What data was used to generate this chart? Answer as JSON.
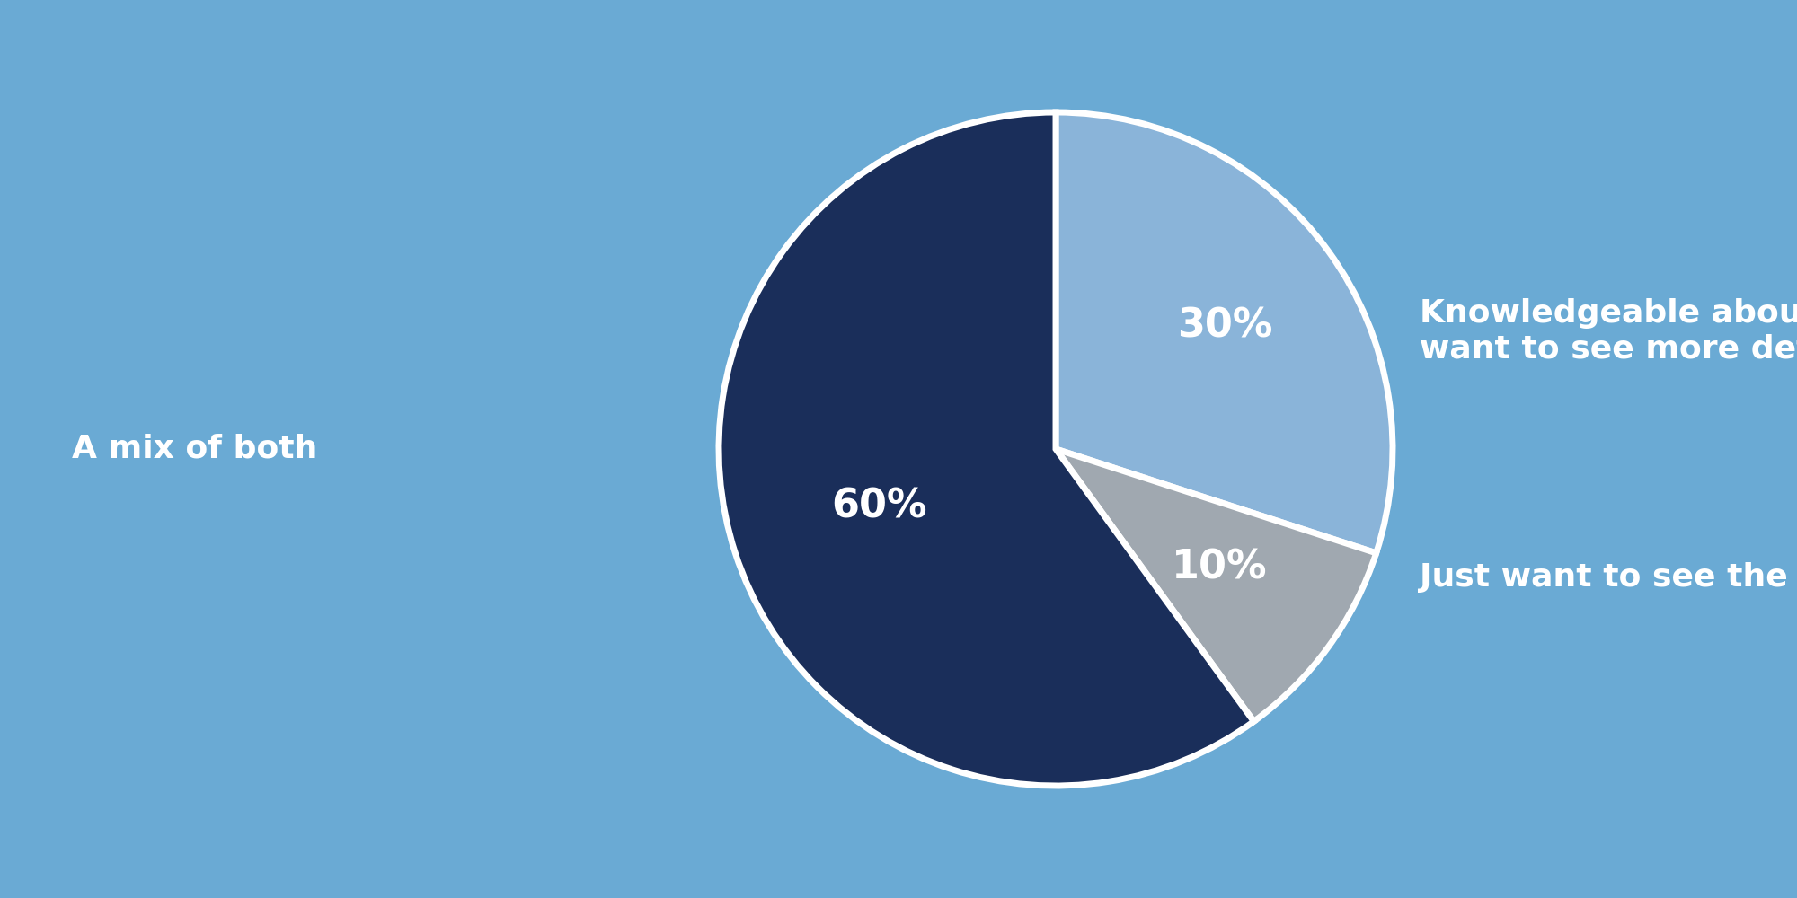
{
  "slices": [
    30,
    10,
    60
  ],
  "labels": [
    "Knowledgeable about UX,\nwant to see more details",
    "Just want to see the results",
    "A mix of both"
  ],
  "pct_labels": [
    "30%",
    "10%",
    "60%"
  ],
  "colors": [
    "#8ab4d9",
    "#a0a8b0",
    "#1a2e5a"
  ],
  "background_color": "#6aaad4",
  "wedge_edge_color": "#ffffff",
  "wedge_edge_width": 5,
  "text_color": "#ffffff",
  "pct_fontsize": 32,
  "label_fontsize": 26,
  "start_angle": 90,
  "figsize": [
    20,
    10
  ]
}
